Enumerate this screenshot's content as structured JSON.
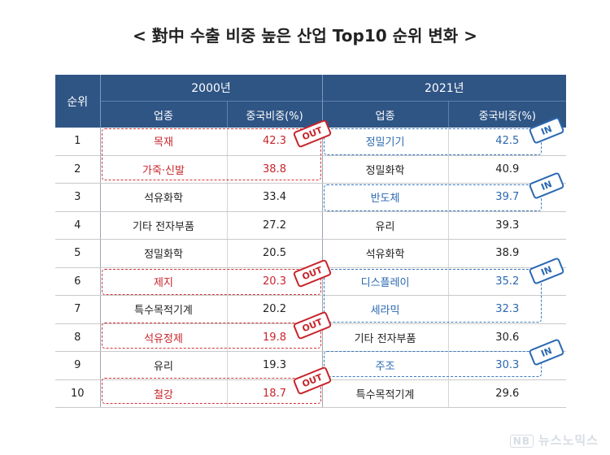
{
  "title": "< 對中 수출 비중 높은 산업 Top10 순위 변화 >",
  "header": {
    "rank": "순위",
    "year_2000": "2000년",
    "year_2021": "2021년",
    "industry": "업종",
    "share": "중국비중(%)"
  },
  "rows": [
    {
      "rank": "1",
      "i2000": "목재",
      "s2000": "42.3",
      "i2021": "정밀기기",
      "s2021": "42.5"
    },
    {
      "rank": "2",
      "i2000": "가죽·신발",
      "s2000": "38.8",
      "i2021": "정밀화학",
      "s2021": "40.9"
    },
    {
      "rank": "3",
      "i2000": "석유화학",
      "s2000": "33.4",
      "i2021": "반도체",
      "s2021": "39.7"
    },
    {
      "rank": "4",
      "i2000": "기타 전자부품",
      "s2000": "27.2",
      "i2021": "유리",
      "s2021": "39.3"
    },
    {
      "rank": "5",
      "i2000": "정밀화학",
      "s2000": "20.5",
      "i2021": "석유화학",
      "s2021": "38.9"
    },
    {
      "rank": "6",
      "i2000": "제지",
      "s2000": "20.3",
      "i2021": "디스플레이",
      "s2021": "35.2"
    },
    {
      "rank": "7",
      "i2000": "특수목적기계",
      "s2000": "20.2",
      "i2021": "세라믹",
      "s2021": "32.3"
    },
    {
      "rank": "8",
      "i2000": "석유정제",
      "s2000": "19.8",
      "i2021": "기타 전자부품",
      "s2021": "30.6"
    },
    {
      "rank": "9",
      "i2000": "유리",
      "s2000": "19.3",
      "i2021": "주조",
      "s2021": "30.3"
    },
    {
      "rank": "10",
      "i2000": "철강",
      "s2000": "18.7",
      "i2021": "특수목적기계",
      "s2021": "29.6"
    }
  ],
  "stamps": {
    "out": "OUT",
    "in": "IN"
  },
  "colors": {
    "header_bg": "#2f5585",
    "out_red": "#c8242b",
    "in_blue": "#2a68b1"
  },
  "watermark": {
    "logo": "NB",
    "text": "뉴스노믹스"
  }
}
